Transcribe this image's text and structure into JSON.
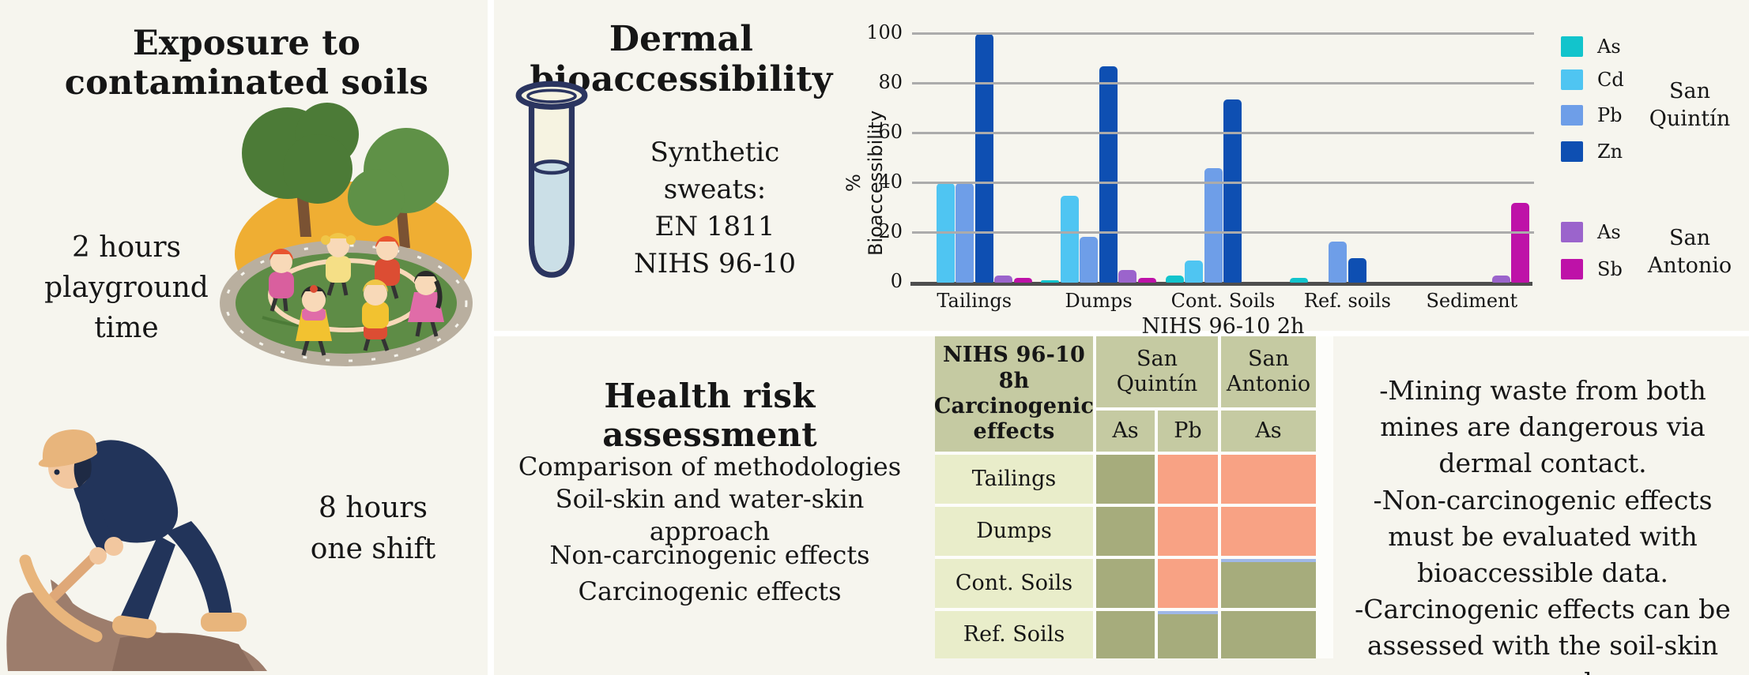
{
  "exposure_panel": {
    "title": "Exposure to contaminated soils",
    "playground_caption_lines": [
      "2 hours",
      "playground",
      "time"
    ],
    "miner_caption_lines": [
      "8 hours",
      "one shift"
    ]
  },
  "dermal_panel": {
    "title": "Dermal bioaccessibility",
    "caption_lines": [
      "Synthetic sweats:",
      "EN 1811",
      "NIHS 96-10"
    ]
  },
  "health_panel": {
    "title": "Health risk assessment",
    "methodology_lines": [
      "Comparison of methodologies",
      "Soil-skin and water-skin approach"
    ],
    "effect_lines": [
      "Non-carcinogenic effects",
      "Carcinogenic effects"
    ]
  },
  "conclusions_panel": {
    "bullets": [
      "-Mining waste from both mines are dangerous via dermal contact.",
      "-Non-carcinogenic effects must be evaluated with bioaccessible data.",
      "-Carcinogenic effects can be assessed with the soil-skin approach."
    ]
  },
  "chart_data": {
    "type": "bar",
    "title": "",
    "xlabel": "NIHS 96-10 2h",
    "ylabel": "% Bioaccessibility",
    "ylim": [
      0,
      100
    ],
    "yticks": [
      0,
      20,
      40,
      60,
      80,
      100
    ],
    "grid": "horizontal",
    "legend_position": "right",
    "categories": [
      "Tailings",
      "Dumps",
      "Cont. Soils",
      "Ref. soils",
      "Sediment"
    ],
    "series": [
      {
        "name": "As",
        "mine": "San Quintín",
        "color": "#12c4cc",
        "values": [
          0,
          1,
          3,
          2,
          0
        ]
      },
      {
        "name": "Cd",
        "mine": "San Quintín",
        "color": "#4fc5f2",
        "values": [
          40,
          35,
          9,
          0,
          0
        ]
      },
      {
        "name": "Pb",
        "mine": "San Quintín",
        "color": "#6e9ee8",
        "values": [
          40,
          18.5,
          46,
          16.5,
          0
        ]
      },
      {
        "name": "Zn",
        "mine": "San Quintín",
        "color": "#0e4fb2",
        "values": [
          100,
          87,
          73.5,
          10,
          0
        ]
      },
      {
        "name": "As",
        "mine": "San Antonio",
        "color": "#9b64cc",
        "values": [
          3,
          5,
          0,
          0,
          3
        ]
      },
      {
        "name": "Sb",
        "mine": "San Antonio",
        "color": "#be12a8",
        "values": [
          2,
          2,
          0,
          0,
          32
        ]
      }
    ],
    "legend_groups": [
      {
        "label": "San Quintín",
        "series": [
          0,
          1,
          2,
          3
        ]
      },
      {
        "label": "San Antonio",
        "series": [
          4,
          5
        ]
      }
    ]
  },
  "risk_table": {
    "title_lines": [
      "NIHS 96-10 8h",
      "Carcinogenic effects"
    ],
    "column_groups": [
      {
        "label": "San Quintín",
        "columns": [
          "As",
          "Pb"
        ]
      },
      {
        "label": "San Antonio",
        "columns": [
          "As"
        ]
      }
    ],
    "status_colors": {
      "risk": "#f8a284",
      "no_risk": "#a6ac7c"
    },
    "rows": [
      {
        "label": "Tailings",
        "cells": [
          {
            "status": "no_risk"
          },
          {
            "status": "risk"
          },
          {
            "status": "risk"
          }
        ]
      },
      {
        "label": "Dumps",
        "cells": [
          {
            "status": "no_risk"
          },
          {
            "status": "risk"
          },
          {
            "status": "risk"
          }
        ]
      },
      {
        "label": "Cont. Soils",
        "cells": [
          {
            "status": "no_risk"
          },
          {
            "status": "risk"
          },
          {
            "status": "no_risk",
            "accent_top": true
          }
        ]
      },
      {
        "label": "Ref. Soils",
        "cells": [
          {
            "status": "no_risk"
          },
          {
            "status": "no_risk",
            "accent_top": true
          },
          {
            "status": "no_risk"
          }
        ]
      }
    ]
  }
}
